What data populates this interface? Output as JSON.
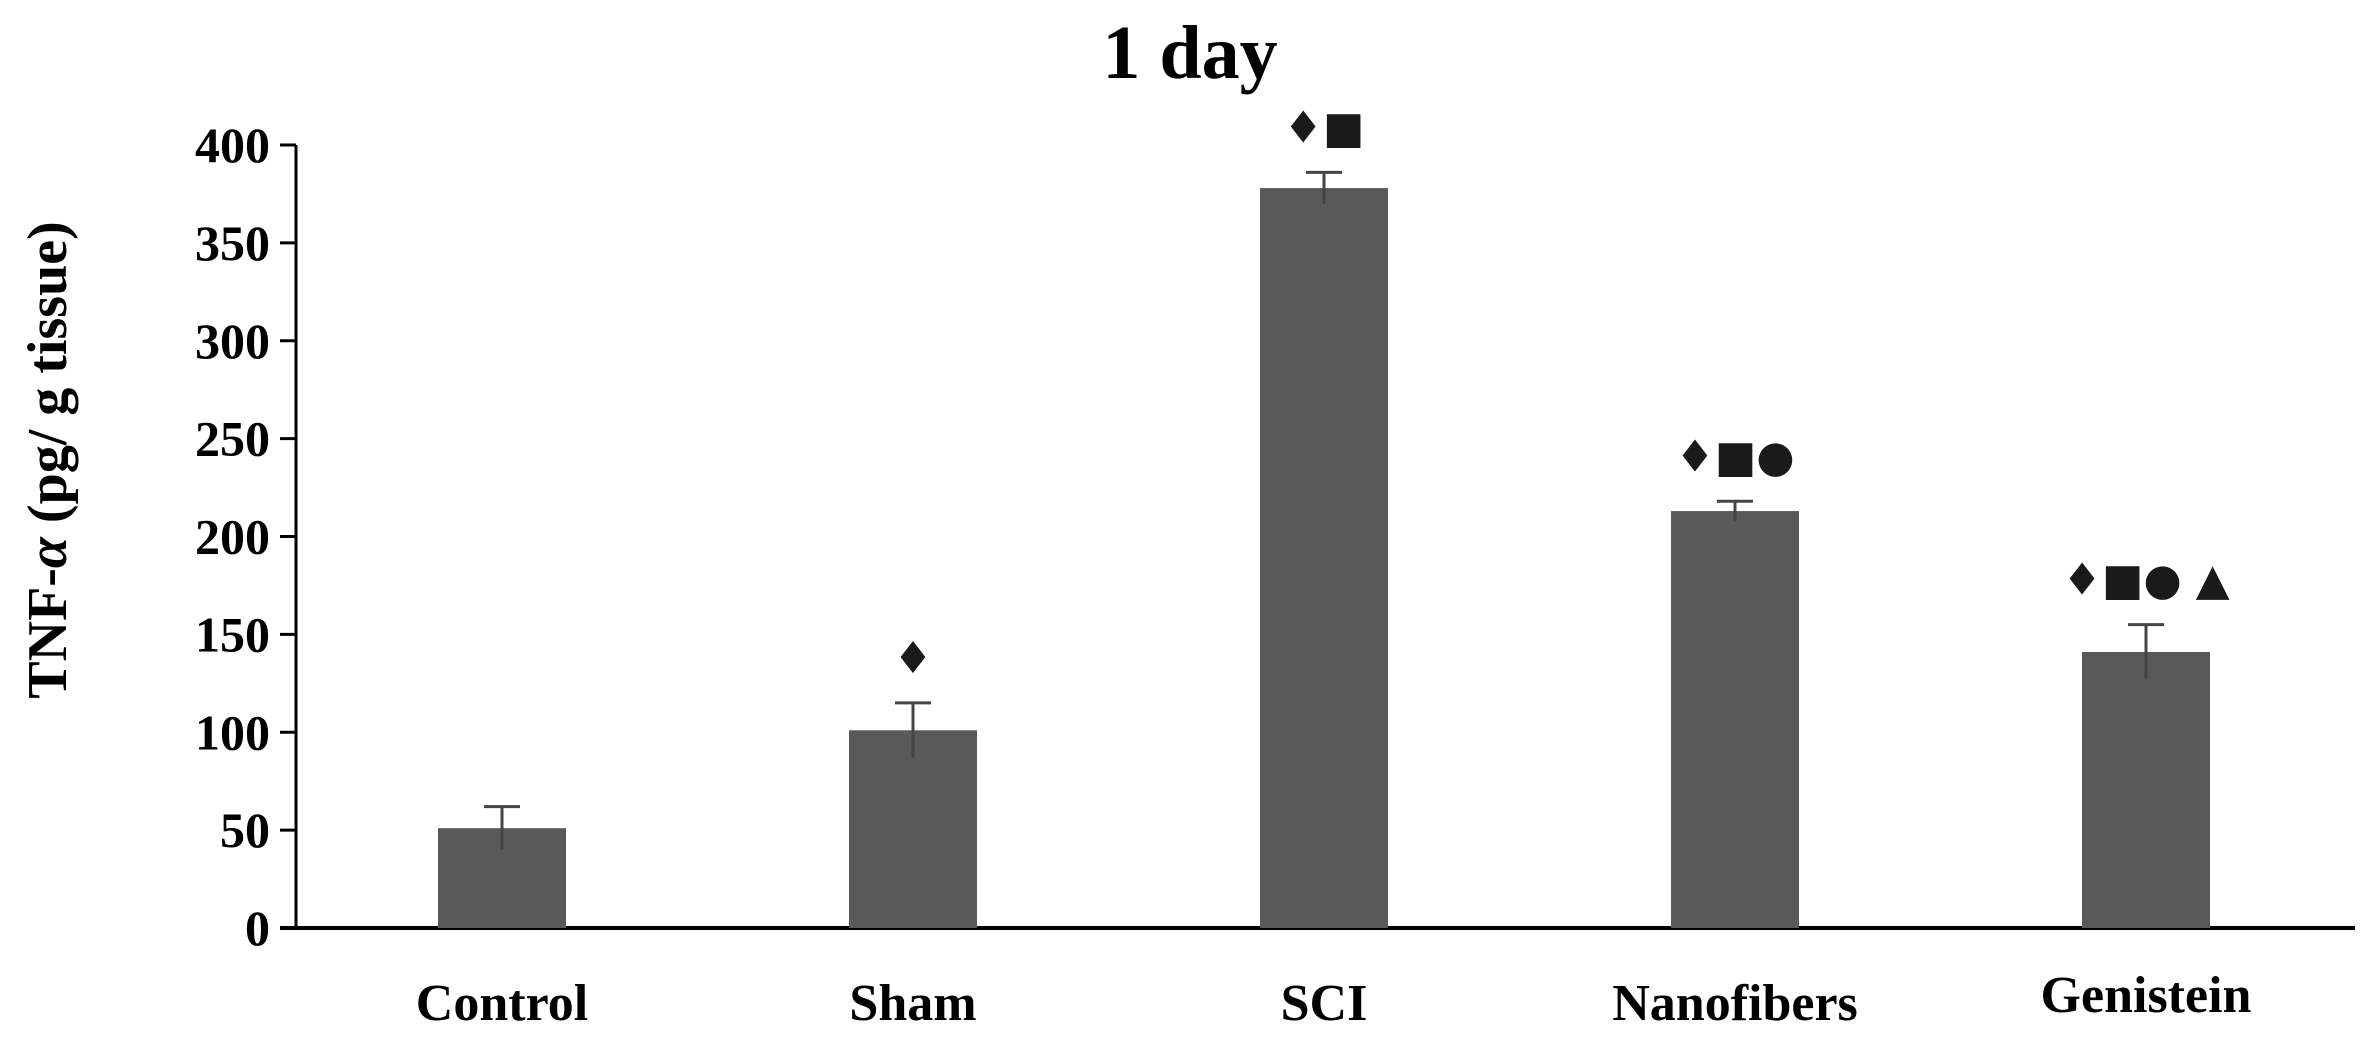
{
  "chart_data": {
    "type": "bar",
    "title": "1 day",
    "xlabel": "",
    "ylabel": "TNF-α (pg/ g tissue)",
    "ylabel_parts": [
      "TNF-",
      "α",
      " (pg/ g tissue)"
    ],
    "ylim": [
      0,
      400
    ],
    "yticks": [
      0,
      50,
      100,
      150,
      200,
      250,
      300,
      350,
      400
    ],
    "categories": [
      "Control",
      "Sham",
      "SCI",
      "Nanofibers",
      "Genistein"
    ],
    "values": [
      51,
      101,
      378,
      213,
      141
    ],
    "errors": [
      11,
      14,
      8,
      5,
      14
    ],
    "annotations": [
      "",
      "♦",
      "♦■",
      "♦■●",
      "♦■● ▲"
    ],
    "bar_color": "#595959",
    "grid": false,
    "legend": "none"
  }
}
